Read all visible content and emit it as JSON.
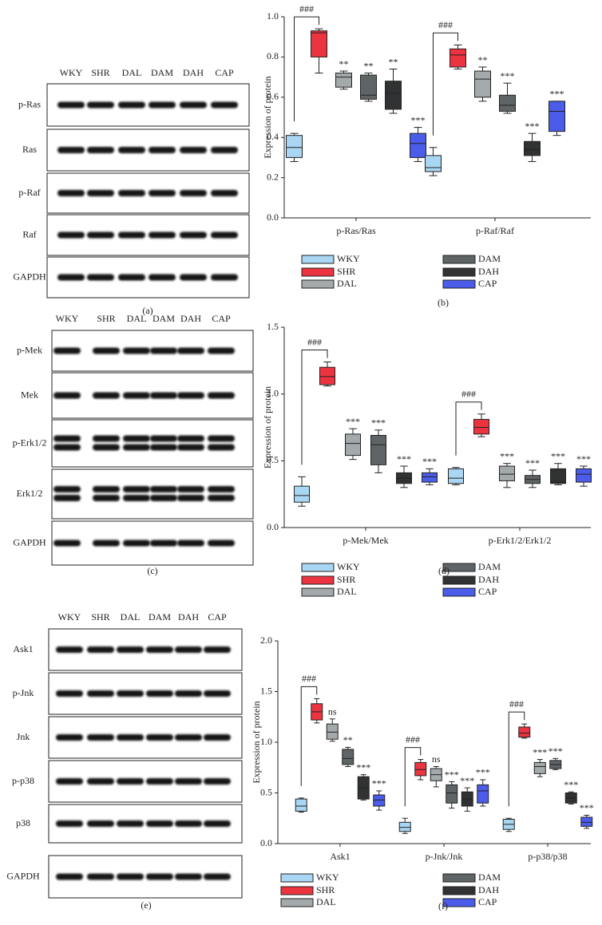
{
  "blots": [
    {
      "lanes": [
        "WKY",
        "SHR",
        "DAL",
        "DAM",
        "DAH",
        "CAP"
      ],
      "rows": [
        "p-Ras",
        "Ras",
        "p-Raf",
        "Raf",
        "GAPDH"
      ],
      "caption": "(a)"
    },
    {
      "lanes": [
        "WKY",
        "SHR",
        "DAL",
        "DAM",
        "DAH",
        "CAP"
      ],
      "rows": [
        "p-Mek",
        "Mek",
        "p-Erk1/2",
        "Erk1/2",
        "GAPDH"
      ],
      "caption": "(c)"
    },
    {
      "lanes": [
        "WKY",
        "SHR",
        "DAL",
        "DAM",
        "DAH",
        "CAP"
      ],
      "rows": [
        "Ask1",
        "p-Jnk",
        "Jnk",
        "p-p38",
        "p38",
        "GAPDH"
      ],
      "caption": "(e)"
    }
  ],
  "chart_data": [
    {
      "type": "box",
      "y_label": "Expression of protein",
      "caption": "(b)",
      "categories": [
        "p-Ras/Ras",
        "p-Raf/Raf"
      ],
      "comparison_labels": [
        "###",
        "###"
      ],
      "ylim": [
        0,
        1
      ],
      "yticks": [
        {
          "value": 0,
          "label": "0.0"
        },
        0.2,
        0.4,
        0.6,
        0.8,
        {
          "value": 1,
          "label": "1.0"
        }
      ],
      "series": [
        {
          "name": "WKY",
          "color": "#a9d6f2",
          "min": [
            0.28,
            0.21
          ],
          "q1": [
            0.3,
            0.23
          ],
          "median": [
            0.35,
            0.25
          ],
          "q3": [
            0.41,
            0.31
          ],
          "max": [
            0.42,
            0.35
          ]
        },
        {
          "name": "SHR",
          "color": "#ec3340",
          "min": [
            0.72,
            0.74
          ],
          "q1": [
            0.8,
            0.75
          ],
          "median": [
            0.92,
            0.81
          ],
          "q3": [
            0.93,
            0.84
          ],
          "max": [
            0.94,
            0.86
          ]
        },
        {
          "name": "DAL",
          "color": "#a4a9ab",
          "min": [
            0.64,
            0.58
          ],
          "q1": [
            0.65,
            0.6
          ],
          "median": [
            0.7,
            0.69
          ],
          "q3": [
            0.72,
            0.73
          ],
          "max": [
            0.73,
            0.75
          ],
          "significance": [
            "**",
            "**"
          ]
        },
        {
          "name": "DAM",
          "color": "#5f6466",
          "min": [
            0.58,
            0.52
          ],
          "q1": [
            0.59,
            0.53
          ],
          "median": [
            0.61,
            0.56
          ],
          "q3": [
            0.71,
            0.61
          ],
          "max": [
            0.72,
            0.67
          ],
          "significance": [
            "**",
            "***"
          ]
        },
        {
          "name": "DAH",
          "color": "#303233",
          "min": [
            0.52,
            0.28
          ],
          "q1": [
            0.54,
            0.31
          ],
          "median": [
            0.62,
            0.34
          ],
          "q3": [
            0.68,
            0.38
          ],
          "max": [
            0.74,
            0.42
          ],
          "significance": [
            "**",
            "***"
          ]
        },
        {
          "name": "CAP",
          "color": "#4b5cea",
          "min": [
            0.28,
            0.41
          ],
          "q1": [
            0.3,
            0.43
          ],
          "median": [
            0.37,
            0.53
          ],
          "q3": [
            0.42,
            0.58
          ],
          "max": [
            0.45,
            0.58
          ],
          "significance": [
            "***",
            "***"
          ]
        }
      ]
    },
    {
      "type": "box",
      "y_label": "Expression of protein",
      "caption": "(d)",
      "categories": [
        "p-Mek/Mek",
        "p-Erk1/2/Erk1/2"
      ],
      "comparison_labels": [
        "###",
        "###"
      ],
      "ylim": [
        0,
        1.5
      ],
      "yticks": [
        {
          "value": 0,
          "label": "0.0"
        },
        0.5,
        {
          "value": 1,
          "label": "1.0"
        },
        1.5
      ],
      "series": [
        {
          "name": "WKY",
          "color": "#a9d6f2",
          "min": [
            0.16,
            0.32
          ],
          "q1": [
            0.19,
            0.33
          ],
          "median": [
            0.24,
            0.37
          ],
          "q3": [
            0.31,
            0.44
          ],
          "max": [
            0.38,
            0.45
          ]
        },
        {
          "name": "SHR",
          "color": "#ec3340",
          "min": [
            1.06,
            0.68
          ],
          "q1": [
            1.07,
            0.7
          ],
          "median": [
            1.13,
            0.75
          ],
          "q3": [
            1.2,
            0.81
          ],
          "max": [
            1.24,
            0.85
          ]
        },
        {
          "name": "DAL",
          "color": "#a4a9ab",
          "min": [
            0.51,
            0.3
          ],
          "q1": [
            0.54,
            0.35
          ],
          "median": [
            0.63,
            0.4
          ],
          "q3": [
            0.7,
            0.46
          ],
          "max": [
            0.74,
            0.48
          ],
          "significance": [
            "***",
            "***"
          ]
        },
        {
          "name": "DAM",
          "color": "#5f6466",
          "min": [
            0.41,
            0.3
          ],
          "q1": [
            0.47,
            0.33
          ],
          "median": [
            0.62,
            0.36
          ],
          "q3": [
            0.69,
            0.39
          ],
          "max": [
            0.73,
            0.43
          ],
          "significance": [
            "***",
            "***"
          ]
        },
        {
          "name": "DAH",
          "color": "#303233",
          "min": [
            0.3,
            0.32
          ],
          "q1": [
            0.33,
            0.33
          ],
          "median": [
            0.37,
            0.34
          ],
          "q3": [
            0.41,
            0.44
          ],
          "max": [
            0.46,
            0.48
          ],
          "significance": [
            "***",
            "***"
          ]
        },
        {
          "name": "CAP",
          "color": "#4b5cea",
          "min": [
            0.32,
            0.31
          ],
          "q1": [
            0.34,
            0.34
          ],
          "median": [
            0.38,
            0.4
          ],
          "q3": [
            0.41,
            0.44
          ],
          "max": [
            0.44,
            0.46
          ],
          "significance": [
            "***",
            "***"
          ]
        }
      ]
    },
    {
      "type": "box",
      "y_label": "Expression of protein",
      "caption": "(f)",
      "categories": [
        "Ask1",
        "p-Jnk/Jnk",
        "p-p38/p38"
      ],
      "comparison_labels": [
        "###",
        "###",
        "###"
      ],
      "ylim": [
        0,
        2
      ],
      "yticks": [
        {
          "value": 0,
          "label": "0.0"
        },
        0.5,
        {
          "value": 1,
          "label": "1.0"
        },
        1.5,
        {
          "value": 2,
          "label": "2.0"
        }
      ],
      "series": [
        {
          "name": "WKY",
          "color": "#a9d6f2",
          "min": [
            0.31,
            0.1,
            0.12
          ],
          "q1": [
            0.32,
            0.12,
            0.14
          ],
          "median": [
            0.37,
            0.16,
            0.19
          ],
          "q3": [
            0.44,
            0.21,
            0.24
          ],
          "max": [
            0.45,
            0.25,
            0.25
          ]
        },
        {
          "name": "SHR",
          "color": "#ec3340",
          "min": [
            1.19,
            0.63,
            1.04
          ],
          "q1": [
            1.22,
            0.67,
            1.05
          ],
          "median": [
            1.3,
            0.73,
            1.09
          ],
          "q3": [
            1.38,
            0.8,
            1.15
          ],
          "max": [
            1.43,
            0.83,
            1.18
          ]
        },
        {
          "name": "DAL",
          "color": "#a4a9ab",
          "min": [
            1.01,
            0.56,
            0.66
          ],
          "q1": [
            1.03,
            0.62,
            0.69
          ],
          "median": [
            1.1,
            0.68,
            0.76
          ],
          "q3": [
            1.18,
            0.74,
            0.8
          ],
          "max": [
            1.23,
            0.76,
            0.83
          ],
          "significance": [
            "ns",
            "ns",
            "***"
          ]
        },
        {
          "name": "DAM",
          "color": "#5f6466",
          "min": [
            0.76,
            0.35,
            0.73
          ],
          "q1": [
            0.78,
            0.4,
            0.74
          ],
          "median": [
            0.84,
            0.5,
            0.78
          ],
          "q3": [
            0.93,
            0.58,
            0.82
          ],
          "max": [
            0.95,
            0.61,
            0.84
          ],
          "significance": [
            "**",
            "***",
            "***"
          ]
        },
        {
          "name": "DAH",
          "color": "#303233",
          "min": [
            0.43,
            0.32,
            0.39
          ],
          "q1": [
            0.44,
            0.37,
            0.4
          ],
          "median": [
            0.55,
            0.44,
            0.45
          ],
          "q3": [
            0.66,
            0.51,
            0.5
          ],
          "max": [
            0.68,
            0.55,
            0.51
          ],
          "significance": [
            "***",
            "***",
            "***"
          ]
        },
        {
          "name": "CAP",
          "color": "#4b5cea",
          "min": [
            0.33,
            0.37,
            0.15
          ],
          "q1": [
            0.37,
            0.4,
            0.17
          ],
          "median": [
            0.43,
            0.52,
            0.21
          ],
          "q3": [
            0.48,
            0.58,
            0.26
          ],
          "max": [
            0.52,
            0.63,
            0.28
          ],
          "significance": [
            "***",
            "***",
            "***"
          ]
        }
      ]
    }
  ]
}
